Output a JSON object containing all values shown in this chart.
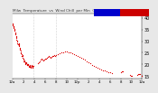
{
  "bg_color": "#e8e8e8",
  "plot_bg": "#ffffff",
  "ylim": [
    14,
    42
  ],
  "xlim": [
    0,
    1440
  ],
  "yticks": [
    15,
    20,
    25,
    30,
    35,
    40
  ],
  "ylabel_fontsize": 3.5,
  "xlabel_fontsize": 2.8,
  "title_fontsize": 3.0,
  "legend_blue": "#0000cc",
  "legend_red": "#cc0000",
  "vline_color": "#aaaaaa",
  "vlines_x": [
    230,
    480
  ],
  "dot_color": "#dd0000",
  "dot_size": 0.8,
  "outdoor_temp": [
    [
      0,
      37.5
    ],
    [
      3,
      37.2
    ],
    [
      6,
      36.9
    ],
    [
      9,
      36.6
    ],
    [
      12,
      36.3
    ],
    [
      15,
      36.0
    ],
    [
      18,
      35.6
    ],
    [
      21,
      35.2
    ],
    [
      24,
      34.8
    ],
    [
      27,
      34.3
    ],
    [
      30,
      33.8
    ],
    [
      33,
      33.3
    ],
    [
      36,
      32.8
    ],
    [
      39,
      32.2
    ],
    [
      42,
      31.7
    ],
    [
      45,
      31.2
    ],
    [
      48,
      30.7
    ],
    [
      51,
      30.2
    ],
    [
      54,
      29.7
    ],
    [
      57,
      29.2
    ],
    [
      60,
      28.8
    ],
    [
      63,
      28.5
    ],
    [
      66,
      28.8
    ],
    [
      69,
      29.0
    ],
    [
      72,
      28.6
    ],
    [
      75,
      28.2
    ],
    [
      78,
      27.8
    ],
    [
      81,
      27.3
    ],
    [
      84,
      26.8
    ],
    [
      87,
      26.3
    ],
    [
      90,
      25.8
    ],
    [
      93,
      25.3
    ],
    [
      96,
      24.8
    ],
    [
      99,
      24.3
    ],
    [
      102,
      23.8
    ],
    [
      105,
      23.5
    ],
    [
      108,
      23.8
    ],
    [
      111,
      24.0
    ],
    [
      114,
      23.5
    ],
    [
      117,
      23.0
    ],
    [
      120,
      22.5
    ],
    [
      123,
      22.0
    ],
    [
      126,
      21.5
    ],
    [
      129,
      21.2
    ],
    [
      132,
      21.5
    ],
    [
      135,
      21.8
    ],
    [
      138,
      21.5
    ],
    [
      141,
      21.0
    ],
    [
      144,
      20.5
    ],
    [
      147,
      20.2
    ],
    [
      150,
      20.5
    ],
    [
      153,
      20.8
    ],
    [
      156,
      20.5
    ],
    [
      159,
      20.2
    ],
    [
      162,
      19.9
    ],
    [
      165,
      19.7
    ],
    [
      168,
      20.0
    ],
    [
      171,
      20.3
    ],
    [
      174,
      20.0
    ],
    [
      177,
      19.7
    ],
    [
      180,
      19.5
    ],
    [
      183,
      19.3
    ],
    [
      186,
      19.1
    ],
    [
      189,
      19.0
    ],
    [
      192,
      19.3
    ],
    [
      195,
      19.6
    ],
    [
      198,
      19.3
    ],
    [
      201,
      19.0
    ],
    [
      204,
      18.8
    ],
    [
      207,
      19.0
    ],
    [
      210,
      19.3
    ],
    [
      213,
      19.6
    ],
    [
      216,
      19.3
    ],
    [
      219,
      19.0
    ],
    [
      222,
      18.8
    ],
    [
      225,
      19.0
    ],
    [
      228,
      19.2
    ],
    [
      231,
      19.5
    ],
    [
      280,
      20.5
    ],
    [
      290,
      21.0
    ],
    [
      300,
      21.5
    ],
    [
      310,
      22.0
    ],
    [
      320,
      22.3
    ],
    [
      330,
      22.0
    ],
    [
      340,
      21.8
    ],
    [
      350,
      22.0
    ],
    [
      360,
      22.3
    ],
    [
      370,
      22.6
    ],
    [
      380,
      22.9
    ],
    [
      390,
      23.2
    ],
    [
      400,
      23.5
    ],
    [
      410,
      23.2
    ],
    [
      420,
      23.0
    ],
    [
      430,
      23.3
    ],
    [
      440,
      23.6
    ],
    [
      450,
      23.8
    ],
    [
      460,
      24.0
    ],
    [
      470,
      23.8
    ],
    [
      480,
      24.1
    ],
    [
      500,
      24.4
    ],
    [
      520,
      24.7
    ],
    [
      540,
      25.0
    ],
    [
      560,
      25.2
    ],
    [
      580,
      25.4
    ],
    [
      600,
      25.5
    ],
    [
      620,
      25.3
    ],
    [
      640,
      25.0
    ],
    [
      660,
      24.7
    ],
    [
      680,
      24.4
    ],
    [
      700,
      24.1
    ],
    [
      720,
      23.8
    ],
    [
      740,
      23.4
    ],
    [
      760,
      23.0
    ],
    [
      780,
      22.5
    ],
    [
      800,
      22.0
    ],
    [
      820,
      21.5
    ],
    [
      840,
      21.0
    ],
    [
      860,
      20.4
    ],
    [
      880,
      19.9
    ],
    [
      900,
      19.4
    ],
    [
      920,
      18.9
    ],
    [
      940,
      18.5
    ],
    [
      960,
      18.2
    ],
    [
      980,
      17.9
    ],
    [
      1000,
      17.6
    ],
    [
      1020,
      17.3
    ],
    [
      1040,
      17.0
    ],
    [
      1060,
      16.7
    ],
    [
      1080,
      16.5
    ],
    [
      1100,
      16.3
    ],
    [
      1200,
      16.8
    ],
    [
      1210,
      17.0
    ],
    [
      1220,
      17.2
    ],
    [
      1300,
      15.5
    ],
    [
      1310,
      15.3
    ],
    [
      1320,
      15.1
    ],
    [
      1380,
      15.5
    ],
    [
      1390,
      15.8
    ],
    [
      1400,
      16.0
    ],
    [
      1410,
      15.8
    ],
    [
      1430,
      15.3
    ],
    [
      1440,
      15.0
    ]
  ],
  "xtick_positions": [
    0,
    120,
    240,
    360,
    480,
    600,
    720,
    840,
    960,
    1080,
    1200,
    1320,
    1440
  ],
  "xtick_labels": [
    "12a",
    "2",
    "4",
    "6",
    "8",
    "10",
    "12p",
    "2",
    "4",
    "6",
    "8",
    "10",
    "12a"
  ],
  "title_text": "Milw  Temperature  vs  Wind Chill  per Min  (24hr)"
}
